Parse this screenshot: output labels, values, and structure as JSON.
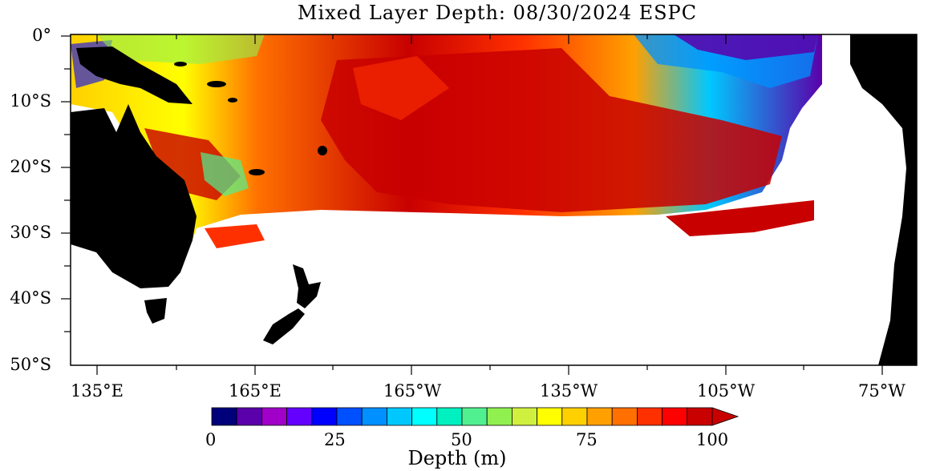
{
  "title": "Mixed Layer Depth: 08/30/2024 ESPC",
  "map": {
    "y_ticks": [
      "0°",
      "10°S",
      "20°S",
      "30°S",
      "40°S",
      "50°S"
    ],
    "x_ticks": [
      "135°E",
      "165°E",
      "165°W",
      "135°W",
      "105°W",
      "75°W"
    ],
    "extent": {
      "lon_min": 130,
      "lon_max": 292,
      "lat_min": -50,
      "lat_max": 0
    }
  },
  "colorbar": {
    "title": "Depth (m)",
    "tick_labels": [
      "0",
      "25",
      "50",
      "75",
      "100"
    ],
    "colors": [
      "#00007a",
      "#5a00aa",
      "#a000c8",
      "#6400ff",
      "#0000ff",
      "#0050ff",
      "#0090ff",
      "#00c8ff",
      "#00ffff",
      "#00f0c0",
      "#50f090",
      "#90f050",
      "#d0f040",
      "#ffff00",
      "#ffd000",
      "#ffa000",
      "#ff7000",
      "#ff3000",
      "#ff0000",
      "#c80000"
    ],
    "extend": "max"
  },
  "legend_colors": {
    "land": "#000000",
    "no_data": "#ffffff"
  }
}
